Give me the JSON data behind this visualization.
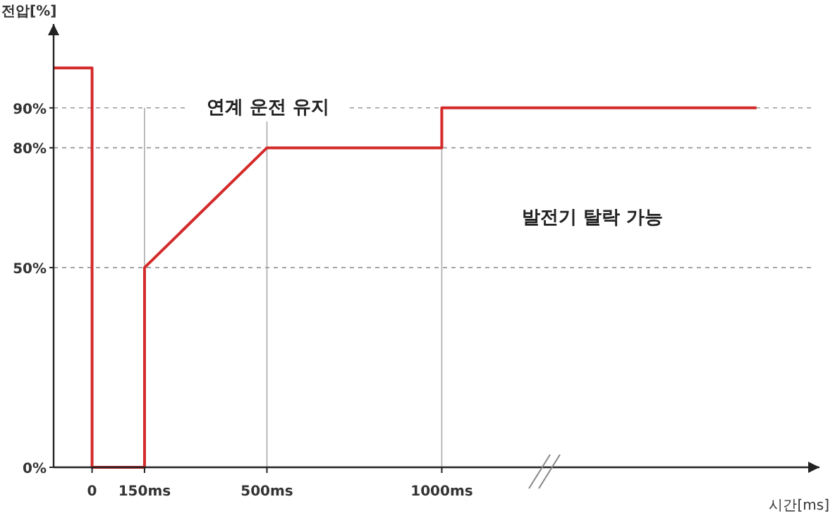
{
  "chart_data": {
    "type": "line",
    "ylabel": "전압[%]",
    "xlabel": "시간[ms]",
    "annotations": [
      "연계 운전 유지",
      "발전기 탈락 가능"
    ],
    "x": [
      -110,
      0,
      0,
      150,
      150,
      500,
      1000,
      1000,
      1900
    ],
    "series": [
      {
        "color": "#d42a2a",
        "values": [
          100,
          100,
          0,
          0,
          50,
          80,
          80,
          90,
          90
        ]
      }
    ],
    "xlim": [
      -110,
      2080
    ],
    "ylim": [
      0,
      111
    ],
    "xticks": [
      0,
      {
        "value": 150,
        "label": "150ms"
      },
      {
        "value": 500,
        "label": "500ms"
      },
      {
        "value": 1000,
        "label": "1000ms"
      }
    ],
    "yticks": [
      {
        "value": 0,
        "label": "0%"
      },
      {
        "value": 50,
        "label": "50%"
      },
      {
        "value": 80,
        "label": "80%"
      },
      {
        "value": 90,
        "label": "90%"
      }
    ],
    "grid": true,
    "line_style": "solid",
    "marker": "none"
  }
}
